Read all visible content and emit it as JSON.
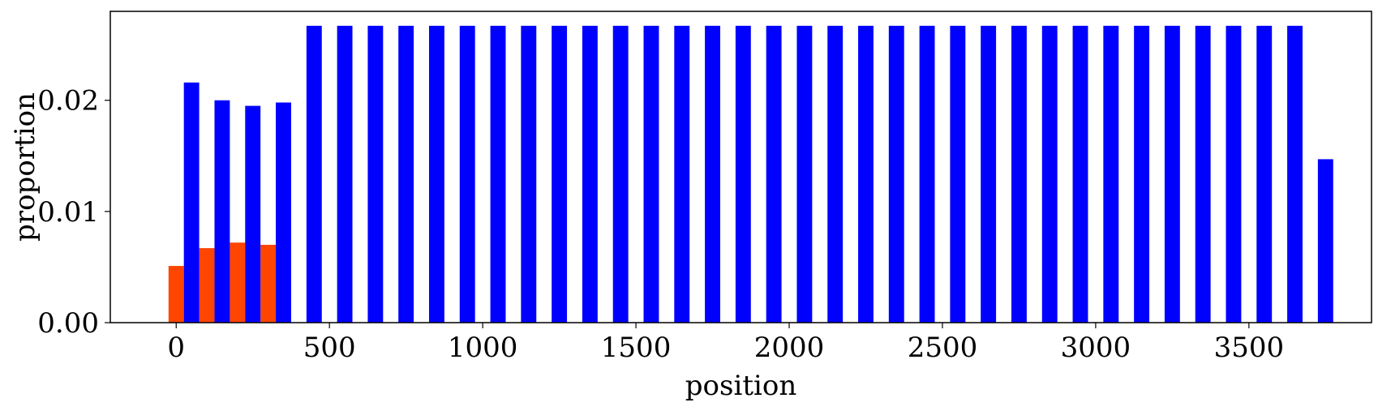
{
  "chart_data": {
    "type": "bar",
    "xlabel": "position",
    "ylabel": "proportion",
    "xlim": [
      -215,
      3900
    ],
    "ylim": [
      0,
      0.028
    ],
    "x_ticks": [
      0,
      500,
      1000,
      1500,
      2000,
      2500,
      3000,
      3500
    ],
    "x_tick_labels": [
      "0",
      "500",
      "1000",
      "1500",
      "2000",
      "2500",
      "3000",
      "3500"
    ],
    "y_ticks": [
      0,
      0.01,
      0.02
    ],
    "y_tick_labels": [
      "0.00",
      "0.01",
      "0.02"
    ],
    "grid": false,
    "legend": "none",
    "bar_width": 50,
    "series": [
      {
        "color": "#ff4500",
        "x": [
          0,
          100,
          200,
          300
        ],
        "values": [
          0.0051,
          0.0067,
          0.0072,
          0.007
        ]
      },
      {
        "color": "#0000ff",
        "x": [
          50,
          150,
          250,
          350,
          450,
          550,
          650,
          750,
          850,
          950,
          1050,
          1150,
          1250,
          1350,
          1450,
          1550,
          1650,
          1750,
          1850,
          1950,
          2050,
          2150,
          2250,
          2350,
          2450,
          2550,
          2650,
          2750,
          2850,
          2950,
          3050,
          3150,
          3250,
          3350,
          3450,
          3550,
          3650,
          3750
        ],
        "values": [
          0.0216,
          0.02,
          0.0195,
          0.0198,
          0.0267,
          0.0267,
          0.0267,
          0.0267,
          0.0267,
          0.0267,
          0.0267,
          0.0267,
          0.0267,
          0.0267,
          0.0267,
          0.0267,
          0.0267,
          0.0267,
          0.0267,
          0.0267,
          0.0267,
          0.0267,
          0.0267,
          0.0267,
          0.0267,
          0.0267,
          0.0267,
          0.0267,
          0.0267,
          0.0267,
          0.0267,
          0.0267,
          0.0267,
          0.0267,
          0.0267,
          0.0267,
          0.0267,
          0.0147
        ]
      }
    ]
  }
}
